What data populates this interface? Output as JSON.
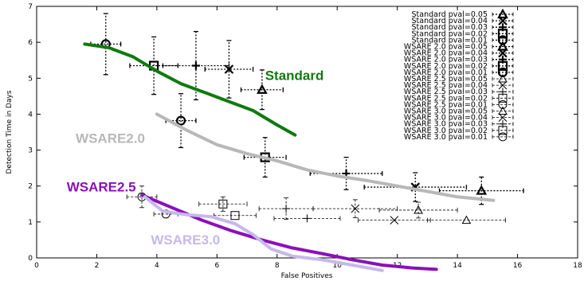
{
  "chart_data": {
    "type": "scatter",
    "title": "",
    "xlabel": "False Positives",
    "ylabel": "Detection Time in Days",
    "xlim": [
      0,
      18
    ],
    "ylim": [
      0,
      7
    ],
    "xticks": [
      "0",
      "2",
      "4",
      "6",
      "8",
      "10",
      "12",
      "14",
      "16",
      "18"
    ],
    "yticks": [
      "0",
      "1",
      "2",
      "3",
      "4",
      "5",
      "6",
      "7"
    ],
    "legend_position": "top-right",
    "series": [
      {
        "name": "Standard pval=0.05",
        "marker": "triangle",
        "style": "bold",
        "points": [
          {
            "x": 7.5,
            "y": 4.68,
            "xerr": 0.7,
            "yerr": 0.55
          }
        ]
      },
      {
        "name": "Standard pval=0.04",
        "marker": "x",
        "style": "bold",
        "points": [
          {
            "x": 6.4,
            "y": 5.25,
            "xerr": 0.8,
            "yerr": 0.8
          }
        ]
      },
      {
        "name": "Standard pval=0.03",
        "marker": "plus",
        "style": "bold",
        "points": [
          {
            "x": 5.3,
            "y": 5.35,
            "xerr": 1.1,
            "yerr": 0.95
          }
        ]
      },
      {
        "name": "Standard pval=0.02",
        "marker": "square",
        "style": "bold",
        "points": [
          {
            "x": 3.9,
            "y": 5.35,
            "xerr": 0.8,
            "yerr": 0.8
          }
        ]
      },
      {
        "name": "Standard pval=0.01",
        "marker": "circle",
        "style": "bold",
        "points": [
          {
            "x": 2.3,
            "y": 5.95,
            "xerr": 0.5,
            "yerr": 0.85
          }
        ]
      },
      {
        "name": "WSARE 2.0 pval=0.05",
        "marker": "triangle",
        "style": "bold",
        "points": [
          {
            "x": 14.8,
            "y": 1.87,
            "xerr": 1.4,
            "yerr": 0.38
          }
        ]
      },
      {
        "name": "WSARE 2.0 pval=0.04",
        "marker": "x",
        "style": "bold",
        "points": [
          {
            "x": 12.6,
            "y": 1.97,
            "xerr": 1.7,
            "yerr": 0.4
          }
        ]
      },
      {
        "name": "WSARE 2.0 pval=0.03",
        "marker": "plus",
        "style": "bold",
        "points": [
          {
            "x": 10.3,
            "y": 2.35,
            "xerr": 1.2,
            "yerr": 0.45
          }
        ]
      },
      {
        "name": "WSARE 2.0 pval=0.02",
        "marker": "square",
        "style": "bold",
        "points": [
          {
            "x": 7.6,
            "y": 2.8,
            "xerr": 0.7,
            "yerr": 0.55
          }
        ]
      },
      {
        "name": "WSARE 2.0 pval=0.01",
        "marker": "circle",
        "style": "bold",
        "points": [
          {
            "x": 4.8,
            "y": 3.82,
            "xerr": 0.5,
            "yerr": 0.75
          }
        ]
      },
      {
        "name": "WSARE 2.5 pval=0.05",
        "marker": "triangle",
        "style": "thin",
        "points": [
          {
            "x": 14.3,
            "y": 1.05,
            "xerr": 1.3,
            "yerr": 0.0
          }
        ]
      },
      {
        "name": "WSARE 2.5 pval=0.04",
        "marker": "x",
        "style": "thin",
        "points": [
          {
            "x": 10.6,
            "y": 1.37,
            "xerr": 1.4,
            "yerr": 0.25
          }
        ]
      },
      {
        "name": "WSARE 2.5 pval=0.03",
        "marker": "plus",
        "style": "thin",
        "points": [
          {
            "x": 8.3,
            "y": 1.37,
            "xerr": 0.9,
            "yerr": 0.3
          }
        ]
      },
      {
        "name": "WSARE 2.5 pval=0.02",
        "marker": "square",
        "style": "thin",
        "points": [
          {
            "x": 6.2,
            "y": 1.5,
            "xerr": 0.8,
            "yerr": 0.2
          }
        ]
      },
      {
        "name": "WSARE 2.5 pval=0.01",
        "marker": "circle",
        "style": "thin",
        "points": [
          {
            "x": 3.5,
            "y": 1.7,
            "xerr": 0.5,
            "yerr": 0.3
          }
        ]
      },
      {
        "name": "WSARE 3.0 pval=0.05",
        "marker": "triangle",
        "style": "thin",
        "points": [
          {
            "x": 12.7,
            "y": 1.33,
            "xerr": 1.3,
            "yerr": 0.22
          }
        ]
      },
      {
        "name": "WSARE 3.0 pval=0.04",
        "marker": "x",
        "style": "thin",
        "points": [
          {
            "x": 11.9,
            "y": 1.05,
            "xerr": 1.2,
            "yerr": 0.0
          }
        ]
      },
      {
        "name": "WSARE 3.0 pval=0.03",
        "marker": "plus",
        "style": "thin",
        "points": [
          {
            "x": 9.0,
            "y": 1.1,
            "xerr": 1.1,
            "yerr": 0.0
          }
        ]
      },
      {
        "name": "WSARE 3.0 pval=0.02",
        "marker": "square",
        "style": "thin",
        "points": [
          {
            "x": 6.6,
            "y": 1.18,
            "xerr": 0.7,
            "yerr": 0.0
          }
        ]
      },
      {
        "name": "WSARE 3.0 pval=0.01",
        "marker": "circle",
        "style": "thin",
        "points": [
          {
            "x": 4.3,
            "y": 1.22,
            "xerr": 0.4,
            "yerr": 0.0
          }
        ]
      }
    ],
    "curves": [
      {
        "label": "Standard",
        "color": "#0e7a0e",
        "x": [
          1.6,
          2.4,
          3.2,
          4.0,
          4.8,
          5.6,
          6.4,
          7.2,
          8.0,
          8.6
        ],
        "y": [
          5.95,
          5.85,
          5.6,
          5.2,
          4.85,
          4.6,
          4.35,
          4.1,
          3.7,
          3.42
        ]
      },
      {
        "label": "WSARE2.0",
        "color": "#b8b8b8",
        "x": [
          4.0,
          5.0,
          6.0,
          7.0,
          8.0,
          9.0,
          10.0,
          11.0,
          12.0,
          13.0,
          14.0,
          15.2
        ],
        "y": [
          4.0,
          3.55,
          3.15,
          2.9,
          2.7,
          2.45,
          2.28,
          2.15,
          2.0,
          1.85,
          1.7,
          1.6
        ]
      },
      {
        "label": "WSARE2.5",
        "color": "#8b10b8",
        "x": [
          3.5,
          4.5,
          5.5,
          6.5,
          7.5,
          8.5,
          9.5,
          10.5,
          11.5,
          12.5,
          13.3
        ],
        "y": [
          1.75,
          1.4,
          1.05,
          0.75,
          0.5,
          0.28,
          0.12,
          -0.05,
          -0.2,
          -0.28,
          -0.32
        ]
      },
      {
        "label": "WSARE3.0",
        "color": "#c6b8ec",
        "x": [
          3.6,
          4.2,
          5.0,
          5.8,
          6.6,
          7.2,
          7.8,
          8.5,
          9.5,
          10.5,
          11.5
        ],
        "y": [
          1.7,
          1.3,
          1.2,
          1.15,
          0.95,
          0.65,
          0.25,
          0.05,
          -0.05,
          -0.2,
          -0.35
        ]
      }
    ]
  }
}
